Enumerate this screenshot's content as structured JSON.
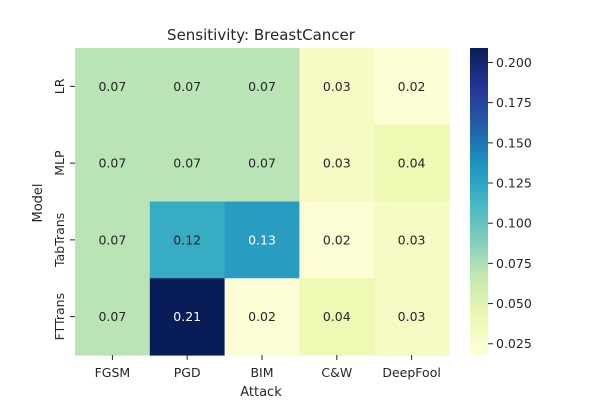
{
  "chart_data": {
    "type": "heatmap",
    "title": "Sensitivity: BreastCancer",
    "xlabel": "Attack",
    "ylabel": "Model",
    "x_categories": [
      "FGSM",
      "PGD",
      "BIM",
      "C&W",
      "DeepFool"
    ],
    "y_categories": [
      "LR",
      "MLP",
      "TabTrans",
      "FTTrans"
    ],
    "values": [
      [
        0.07,
        0.07,
        0.07,
        0.03,
        0.02
      ],
      [
        0.07,
        0.07,
        0.07,
        0.03,
        0.04
      ],
      [
        0.07,
        0.12,
        0.13,
        0.02,
        0.03
      ],
      [
        0.07,
        0.21,
        0.02,
        0.04,
        0.03
      ]
    ],
    "value_labels": [
      [
        "0.07",
        "0.07",
        "0.07",
        "0.03",
        "0.02"
      ],
      [
        "0.07",
        "0.07",
        "0.07",
        "0.03",
        "0.04"
      ],
      [
        "0.07",
        "0.12",
        "0.13",
        "0.02",
        "0.03"
      ],
      [
        "0.07",
        "0.21",
        "0.02",
        "0.04",
        "0.03"
      ]
    ],
    "colorbar": {
      "min": 0.018,
      "max": 0.209,
      "ticks": [
        0.025,
        0.05,
        0.075,
        0.1,
        0.125,
        0.15,
        0.175,
        0.2
      ],
      "tick_labels": [
        "0.025",
        "0.050",
        "0.075",
        "0.100",
        "0.125",
        "0.150",
        "0.175",
        "0.200"
      ]
    },
    "colormap": "YlGnBu",
    "colormap_stops": [
      "#ffffd9",
      "#edf8b1",
      "#c7e9b4",
      "#7fcdbb",
      "#41b6c4",
      "#1d91c0",
      "#225ea8",
      "#253494",
      "#081d58"
    ],
    "grid": false,
    "legend": "colorbar-right"
  }
}
